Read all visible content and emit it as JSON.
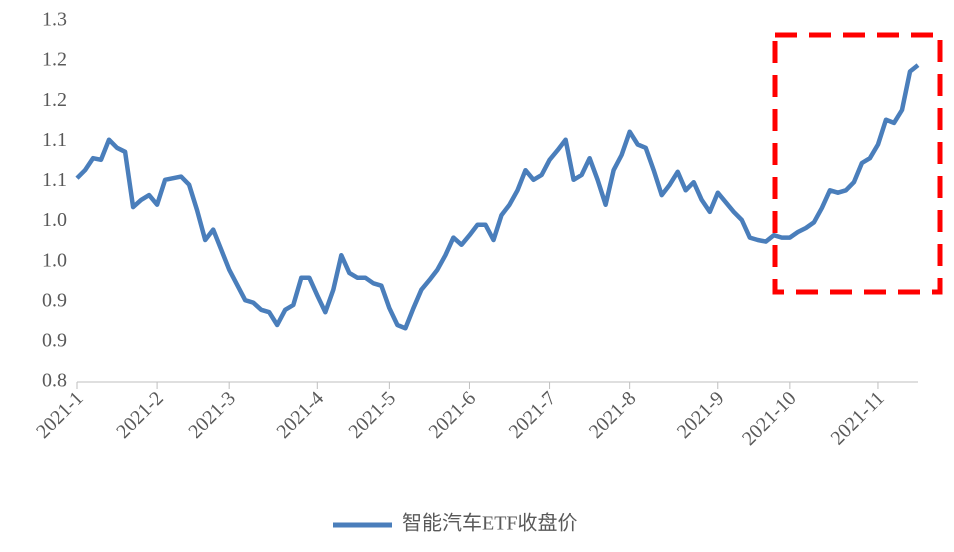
{
  "chart_data": {
    "type": "line",
    "categories": [
      "2021-1",
      null,
      null,
      null,
      null,
      null,
      null,
      null,
      null,
      null,
      "2021-2",
      null,
      null,
      null,
      null,
      null,
      null,
      null,
      null,
      "2021-3",
      null,
      null,
      null,
      null,
      null,
      null,
      null,
      null,
      null,
      null,
      "2021-4",
      null,
      null,
      null,
      null,
      null,
      null,
      null,
      null,
      "2021-5",
      null,
      null,
      null,
      null,
      null,
      null,
      null,
      null,
      null,
      "2021-6",
      null,
      null,
      null,
      null,
      null,
      null,
      null,
      null,
      null,
      "2021-7",
      null,
      null,
      null,
      null,
      null,
      null,
      null,
      null,
      null,
      "2021-8",
      null,
      null,
      null,
      null,
      null,
      null,
      null,
      null,
      null,
      null,
      "2021-9",
      null,
      null,
      null,
      null,
      null,
      null,
      null,
      null,
      "2021-10",
      null,
      null,
      null,
      null,
      null,
      null,
      null,
      null,
      null,
      null,
      "2021-11",
      null,
      null,
      null,
      null,
      null
    ],
    "series": [
      {
        "name": "智能汽车ETF收盘价",
        "color": "#4a7ebb",
        "values": [
          1.054,
          1.064,
          1.079,
          1.077,
          1.102,
          1.092,
          1.087,
          1.018,
          1.027,
          1.033,
          1.021,
          1.052,
          1.054,
          1.056,
          1.046,
          1.014,
          0.977,
          0.99,
          0.965,
          0.94,
          0.921,
          0.902,
          0.899,
          0.89,
          0.887,
          0.871,
          0.89,
          0.896,
          0.93,
          0.93,
          0.908,
          0.887,
          0.915,
          0.958,
          0.936,
          0.93,
          0.93,
          0.923,
          0.92,
          0.892,
          0.871,
          0.867,
          0.892,
          0.915,
          0.927,
          0.94,
          0.958,
          0.98,
          0.971,
          0.983,
          0.996,
          0.996,
          0.977,
          1.008,
          1.021,
          1.039,
          1.064,
          1.052,
          1.058,
          1.077,
          1.089,
          1.102,
          1.052,
          1.058,
          1.079,
          1.052,
          1.021,
          1.064,
          1.083,
          1.112,
          1.096,
          1.092,
          1.064,
          1.033,
          1.046,
          1.062,
          1.039,
          1.049,
          1.027,
          1.012,
          1.036,
          1.024,
          1.012,
          1.002,
          0.98,
          0.977,
          0.975,
          0.983,
          0.98,
          0.98,
          0.987,
          0.992,
          0.999,
          1.017,
          1.039,
          1.036,
          1.039,
          1.049,
          1.073,
          1.079,
          1.096,
          1.127,
          1.123,
          1.139,
          1.187,
          1.195
        ]
      }
    ],
    "ylim": [
      0.8,
      1.25
    ],
    "yticks": [
      0.8,
      {
        "value": 0.85,
        "label": "0.9"
      },
      0.9,
      {
        "value": 0.95,
        "label": "1.0"
      },
      {
        "value": 1.0,
        "label": "1.0"
      },
      {
        "value": 1.05,
        "label": "1.1"
      },
      1.1,
      {
        "value": 1.15,
        "label": "1.2"
      },
      1.2,
      {
        "value": 1.25,
        "label": "1.3"
      }
    ],
    "grid": false,
    "legend": "bottom"
  }
}
